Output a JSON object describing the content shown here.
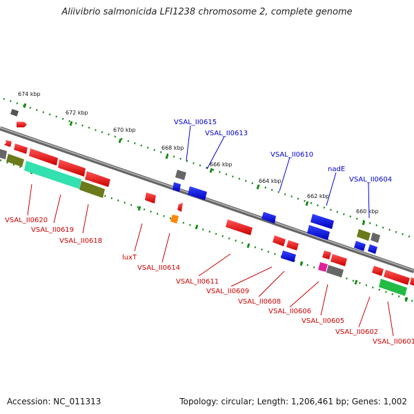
{
  "title": "Aliivibrio salmonicida LFI1238 chromosome 2, complete genome",
  "footer": {
    "accession": "Accession: NC_011313",
    "info": "Topology: circular; Length: 1,206,461 bp; Genes: 1,002"
  },
  "scale_labels": [
    "674 kbp",
    "672 kbp",
    "670 kbp",
    "668 kbp",
    "666 kbp",
    "664 kbp",
    "662 kbp",
    "660 kbp"
  ],
  "genes_forward": [
    "VSAL_II0615",
    "VSAL_II0613",
    "VSAL_II0610",
    "nadE",
    "VSAL_II0604"
  ],
  "genes_reverse": [
    "VSAL_II0620",
    "VSAL_II0619",
    "VSAL_II0618",
    "luxT",
    "VSAL_II0614",
    "VSAL_II0611",
    "VSAL_II0609",
    "VSAL_II0608",
    "VSAL_II0606",
    "VSAL_II0605",
    "VSAL_II0602",
    "VSAL_II0601"
  ],
  "colors": {
    "forward_label": "#0000cc",
    "reverse_label": "#cc0000",
    "scale_tick": "#1a8a1a",
    "backbone": "#888888"
  }
}
